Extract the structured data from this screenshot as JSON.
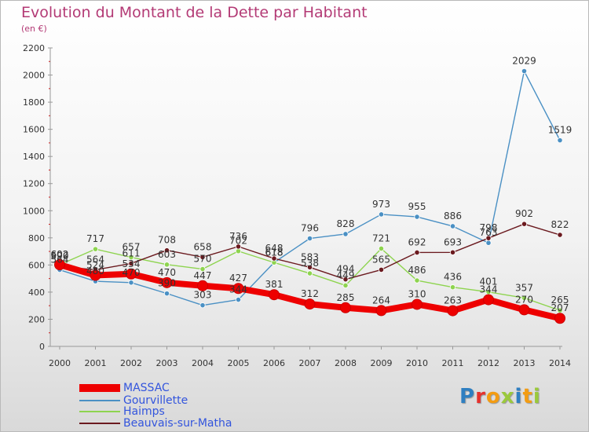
{
  "header": {
    "title": "Evolution du Montant de la Dette par Habitant",
    "unit": "(en €)"
  },
  "logo": {
    "text": "Proxiti"
  },
  "legend": [
    {
      "label": "MASSAC",
      "color": "#ee0000"
    },
    {
      "label": "Gourvillette",
      "color": "#4a90c4"
    },
    {
      "label": "Haimps",
      "color": "#8ed44f"
    },
    {
      "label": "Beauvais-sur-Matha",
      "color": "#6b1a1f"
    }
  ],
  "chart_data": {
    "type": "line",
    "title": "Evolution du Montant de la Dette par Habitant",
    "subtitle": "(en €)",
    "xlabel": "",
    "ylabel": "",
    "x": [
      2000,
      2001,
      2002,
      2003,
      2004,
      2005,
      2006,
      2007,
      2008,
      2009,
      2010,
      2011,
      2012,
      2013,
      2014
    ],
    "ylim": [
      0,
      2200
    ],
    "yticks": [
      0,
      200,
      400,
      600,
      800,
      1000,
      1200,
      1400,
      1600,
      1800,
      2000,
      2200
    ],
    "grid": false,
    "legend_position": "bottom-left",
    "series": [
      {
        "name": "MASSAC",
        "color": "#ee0000",
        "values": [
          602,
          524,
          534,
          470,
          447,
          427,
          381,
          312,
          285,
          264,
          310,
          263,
          344,
          270,
          207
        ]
      },
      {
        "name": "Gourvillette",
        "color": "#4a90c4",
        "values": [
          564,
          480,
          470,
          390,
          303,
          344,
          618,
          796,
          828,
          973,
          955,
          886,
          763,
          2029,
          1519
        ]
      },
      {
        "name": "Haimps",
        "color": "#8ed44f",
        "values": [
          602,
          717,
          657,
          603,
          570,
          702,
          618,
          538,
          449,
          721,
          486,
          436,
          401,
          357,
          265
        ]
      },
      {
        "name": "Beauvais-sur-Matha",
        "color": "#6b1a1f",
        "values": [
          590,
          564,
          611,
          708,
          658,
          736,
          648,
          583,
          494,
          565,
          692,
          693,
          798,
          902,
          822
        ]
      }
    ]
  }
}
